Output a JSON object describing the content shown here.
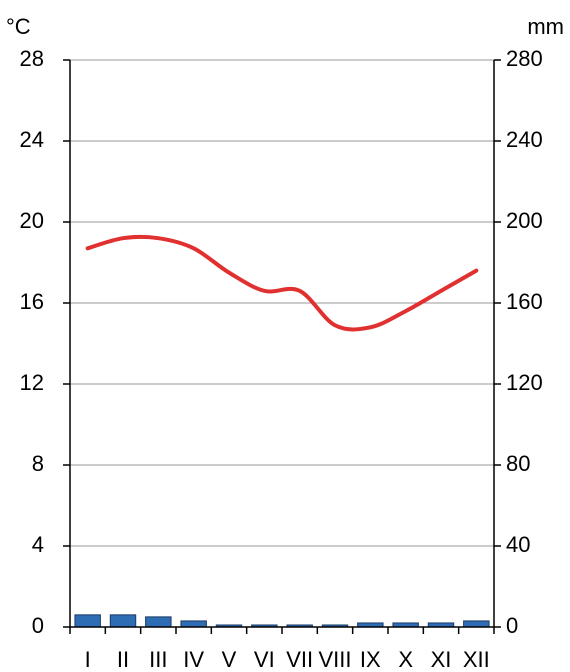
{
  "chart_data": {
    "type": "climate",
    "y_label": "°C",
    "y2_label": "mm",
    "categories": [
      "I",
      "II",
      "III",
      "IV",
      "V",
      "VI",
      "VII",
      "VIII",
      "IX",
      "X",
      "XI",
      "XII"
    ],
    "series": [
      {
        "name": "Precipitation",
        "color": "#2e6db4",
        "axis": "y2",
        "values": [
          6,
          6,
          5,
          3,
          1,
          1,
          1,
          1,
          2,
          2,
          2,
          3
        ]
      },
      {
        "name": "Temperature",
        "color": "#e03030",
        "axis": "y",
        "values": [
          18.7,
          19.2,
          19.2,
          18.7,
          17.5,
          16.6,
          16.6,
          14.9,
          14.8,
          15.6,
          16.6,
          17.6
        ]
      }
    ],
    "ylim": [
      0,
      28
    ],
    "yticks": [
      0,
      4,
      8,
      12,
      16,
      20,
      24,
      28
    ],
    "y2lim": [
      0,
      280
    ],
    "y2ticks": [
      0,
      40,
      80,
      120,
      160,
      200,
      240,
      280
    ],
    "grid": true
  }
}
